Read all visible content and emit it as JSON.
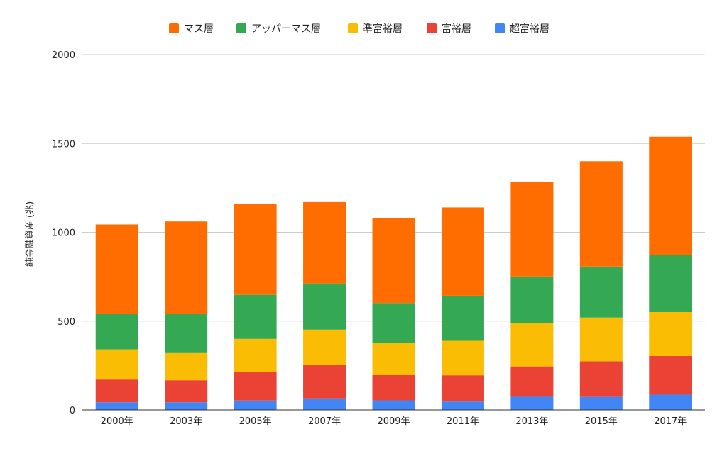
{
  "chart_data": {
    "type": "bar",
    "stacked": true,
    "title": "",
    "xlabel": "",
    "ylabel": "純金融資産 (兆)",
    "ylim": [
      0,
      2000
    ],
    "yticks": [
      "0",
      "500",
      "1000",
      "1500",
      "2000"
    ],
    "grid": true,
    "legend_position": "top-center",
    "categories": [
      "2000年",
      "2003年",
      "2005年",
      "2007年",
      "2009年",
      "2011年",
      "2013年",
      "2015年",
      "2017年"
    ],
    "series": [
      {
        "name": "超富裕層",
        "color": "#4285F4",
        "values": [
          43,
          43,
          53,
          65,
          54,
          47,
          78,
          77,
          86
        ]
      },
      {
        "name": "富裕層",
        "color": "#EA4335",
        "values": [
          128,
          124,
          162,
          190,
          144,
          148,
          167,
          197,
          218
        ]
      },
      {
        "name": "準富裕層",
        "color": "#FBBC04",
        "values": [
          170,
          157,
          185,
          197,
          181,
          194,
          242,
          246,
          247
        ]
      },
      {
        "name": "アッパーマス層",
        "color": "#34A853",
        "values": [
          199,
          218,
          248,
          260,
          223,
          254,
          264,
          287,
          320
        ]
      },
      {
        "name": "マス層",
        "color": "#FF6D01",
        "values": [
          504,
          519,
          510,
          458,
          478,
          497,
          531,
          593,
          667
        ]
      }
    ],
    "legend_order": [
      "マス層",
      "アッパーマス層",
      "準富裕層",
      "富裕層",
      "超富裕層"
    ]
  }
}
